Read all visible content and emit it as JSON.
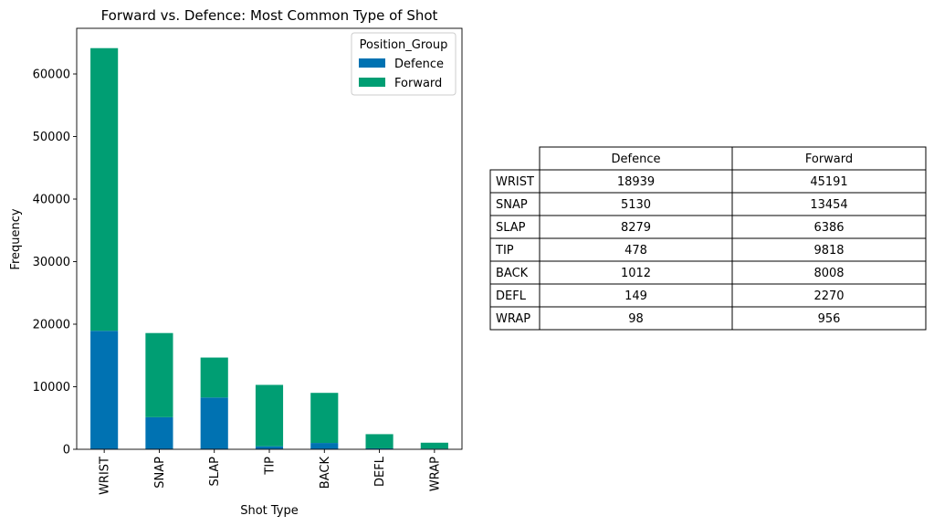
{
  "chart_data": {
    "type": "bar",
    "stacked": true,
    "title": "Forward vs. Defence: Most Common Type of Shot",
    "xlabel": "Shot Type",
    "ylabel": "Frequency",
    "categories": [
      "WRIST",
      "SNAP",
      "SLAP",
      "TIP",
      "BACK",
      "DEFL",
      "WRAP"
    ],
    "series": [
      {
        "name": "Defence",
        "color": "#0072b2",
        "values": [
          18939,
          5130,
          8279,
          478,
          1012,
          149,
          98
        ]
      },
      {
        "name": "Forward",
        "color": "#009e73",
        "values": [
          45191,
          13454,
          6386,
          9818,
          8008,
          2270,
          956
        ]
      }
    ],
    "ylim": [
      0,
      67300
    ],
    "yticks": [
      0,
      10000,
      20000,
      30000,
      40000,
      50000,
      60000
    ],
    "grid": false,
    "legend": {
      "title": "Position_Group",
      "placement": "top-right"
    }
  },
  "table": {
    "columns": [
      "Defence",
      "Forward"
    ],
    "rows": [
      {
        "label": "WRIST",
        "values": [
          "18939",
          "45191"
        ]
      },
      {
        "label": "SNAP",
        "values": [
          "5130",
          "13454"
        ]
      },
      {
        "label": "SLAP",
        "values": [
          "8279",
          "6386"
        ]
      },
      {
        "label": "TIP",
        "values": [
          "478",
          "9818"
        ]
      },
      {
        "label": "BACK",
        "values": [
          "1012",
          "8008"
        ]
      },
      {
        "label": "DEFL",
        "values": [
          "149",
          "2270"
        ]
      },
      {
        "label": "WRAP",
        "values": [
          "98",
          "956"
        ]
      }
    ]
  }
}
